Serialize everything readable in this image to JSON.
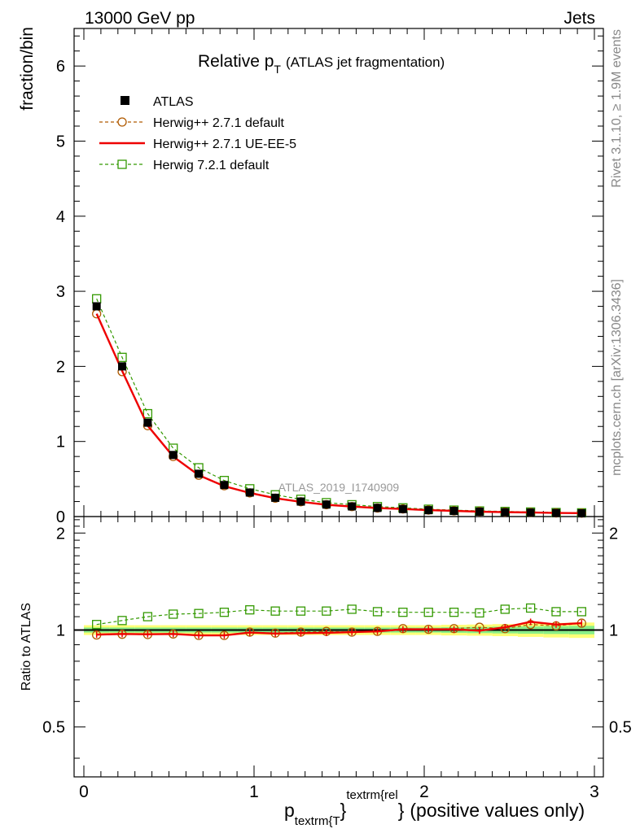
{
  "header": {
    "left": "13000 GeV pp",
    "right": "Jets"
  },
  "side_labels": {
    "rivet": "Rivet 3.1.10, ≥ 1.9M events",
    "mcplots": "mcplots.cern.ch [arXiv:1306.3436]"
  },
  "chart_data": {
    "type": "line",
    "title_main": "Relative p",
    "title_sub": "T",
    "title_rest": "(ATLAS jet fragmentation)",
    "watermark": "ATLAS_2019_I1740909",
    "ylabel": "fraction/bin",
    "ratio_ylabel": "Ratio to ATLAS",
    "xlabel_p": "p",
    "xlabel_sub": "textrm{T",
    "xlabel_sub_close": "}",
    "xlabel_sup": "textrm{rel",
    "xlabel_close": "}",
    "xlabel_rest": "(positive values only)",
    "xlim": [
      0,
      3
    ],
    "ylim": [
      0,
      6.5
    ],
    "ratio_ylim": [
      0.35,
      2.25
    ],
    "x_ticks": [
      "0",
      "1",
      "2",
      "3"
    ],
    "y_ticks": [
      "0",
      "1",
      "2",
      "3",
      "4",
      "5",
      "6"
    ],
    "ratio_ticks": [
      "0.5",
      "1",
      "2"
    ],
    "x": [
      0.075,
      0.225,
      0.375,
      0.525,
      0.675,
      0.825,
      0.975,
      1.125,
      1.275,
      1.425,
      1.575,
      1.725,
      1.875,
      2.025,
      2.175,
      2.325,
      2.475,
      2.625,
      2.775,
      2.925
    ],
    "series": [
      {
        "name": "ATLAS",
        "color": "#000000",
        "marker": "filled-square",
        "values": [
          2.8,
          2.0,
          1.25,
          0.82,
          0.57,
          0.42,
          0.32,
          0.25,
          0.2,
          0.16,
          0.135,
          0.115,
          0.1,
          0.085,
          0.075,
          0.065,
          0.058,
          0.052,
          0.047,
          0.043
        ]
      },
      {
        "name": "Herwig++ 2.7.1 default",
        "color": "#b05a00",
        "marker": "open-circle",
        "dashed": true,
        "values": [
          2.7,
          1.93,
          1.21,
          0.8,
          0.55,
          0.41,
          0.315,
          0.245,
          0.197,
          0.158,
          0.133,
          0.114,
          0.101,
          0.086,
          0.076,
          0.067,
          0.059,
          0.054,
          0.048,
          0.045
        ],
        "ratio": [
          0.965,
          0.97,
          0.968,
          0.972,
          0.962,
          0.962,
          0.985,
          0.978,
          0.985,
          0.99,
          0.985,
          0.99,
          1.01,
          1.005,
          1.01,
          1.02,
          1.01,
          1.04,
          1.03,
          1.05
        ]
      },
      {
        "name": "Herwig++ 2.7.1 UE-EE-5",
        "color": "#ee0000",
        "marker": "line",
        "dashed": false,
        "values": [
          2.7,
          1.94,
          1.21,
          0.8,
          0.55,
          0.405,
          0.315,
          0.245,
          0.196,
          0.157,
          0.133,
          0.114,
          0.101,
          0.086,
          0.076,
          0.065,
          0.059,
          0.055,
          0.048,
          0.045
        ],
        "ratio": [
          0.968,
          0.972,
          0.97,
          0.972,
          0.962,
          0.962,
          0.982,
          0.975,
          0.978,
          0.98,
          0.985,
          0.99,
          1.005,
          1.005,
          1.005,
          0.995,
          1.02,
          1.06,
          1.04,
          1.05
        ]
      },
      {
        "name": "Herwig 7.2.1 default",
        "color": "#339900",
        "marker": "open-square",
        "dashed": true,
        "values": [
          2.9,
          2.12,
          1.37,
          0.91,
          0.65,
          0.48,
          0.37,
          0.29,
          0.23,
          0.185,
          0.158,
          0.133,
          0.116,
          0.098,
          0.086,
          0.075,
          0.068,
          0.061,
          0.054,
          0.05
        ],
        "ratio": [
          1.04,
          1.07,
          1.1,
          1.12,
          1.125,
          1.135,
          1.155,
          1.145,
          1.145,
          1.145,
          1.16,
          1.14,
          1.135,
          1.135,
          1.135,
          1.13,
          1.16,
          1.17,
          1.14,
          1.14
        ]
      }
    ]
  }
}
